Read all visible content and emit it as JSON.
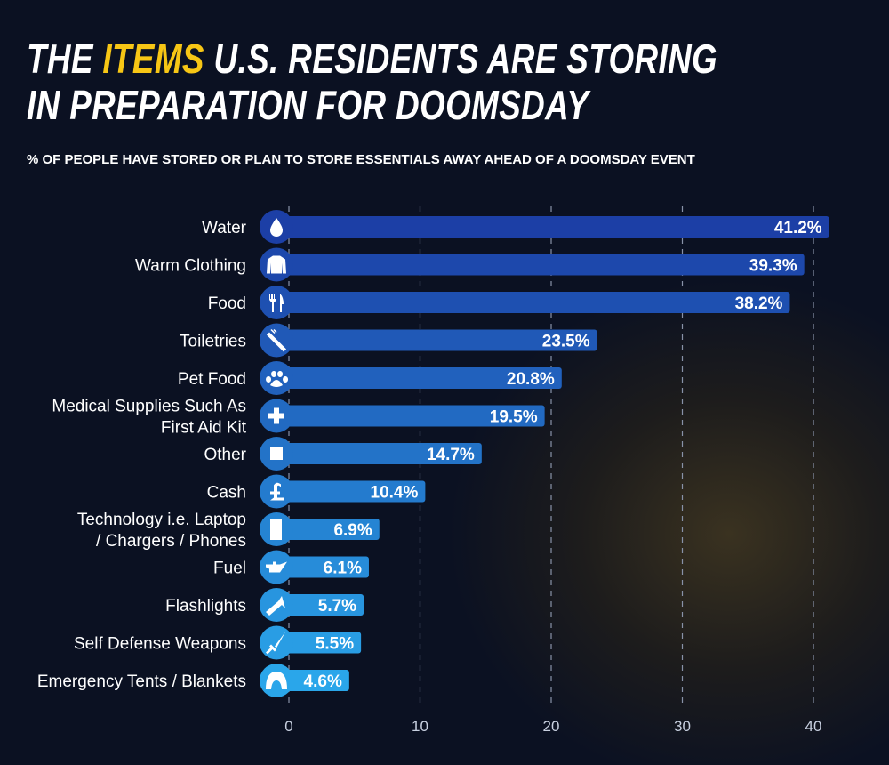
{
  "title": {
    "pre": "THE ",
    "highlight": "ITEMS",
    "post": " U.S. RESIDENTS ARE STORING",
    "line2": "IN PREPARATION FOR DOOMSDAY"
  },
  "colors": {
    "highlight": "#f7c615",
    "bar_dark": "#1c3fa6",
    "bar_light": "#2aa6ea"
  },
  "chart_data": {
    "type": "bar",
    "orientation": "horizontal",
    "title": "THE ITEMS U.S. RESIDENTS ARE STORING IN PREPARATION FOR DOOMSDAY",
    "subtitle": "% OF PEOPLE HAVE STORED OR PLAN TO STORE ESSENTIALS AWAY AHEAD OF A DOOMSDAY EVENT",
    "categories": [
      {
        "label": [
          "Water"
        ],
        "icon": "water-drop-icon"
      },
      {
        "label": [
          "Warm Clothing"
        ],
        "icon": "sweater-icon"
      },
      {
        "label": [
          "Food"
        ],
        "icon": "fork-knife-icon"
      },
      {
        "label": [
          "Toiletries"
        ],
        "icon": "toothbrush-icon"
      },
      {
        "label": [
          "Pet Food"
        ],
        "icon": "paw-icon"
      },
      {
        "label": [
          "Medical Supplies Such As",
          "First Aid Kit"
        ],
        "icon": "medical-cross-icon"
      },
      {
        "label": [
          "Other"
        ],
        "icon": "square-icon"
      },
      {
        "label": [
          "Cash"
        ],
        "icon": "pound-icon"
      },
      {
        "label": [
          "Technology i.e. Laptop",
          "/ Chargers / Phones"
        ],
        "icon": "phone-icon"
      },
      {
        "label": [
          "Fuel"
        ],
        "icon": "oil-can-icon"
      },
      {
        "label": [
          "Flashlights"
        ],
        "icon": "flashlight-icon"
      },
      {
        "label": [
          "Self Defense Weapons"
        ],
        "icon": "sword-icon"
      },
      {
        "label": [
          "Emergency Tents / Blankets"
        ],
        "icon": "tent-icon"
      }
    ],
    "values": [
      41.2,
      39.3,
      38.2,
      23.5,
      20.8,
      19.5,
      14.7,
      10.4,
      6.9,
      6.1,
      5.7,
      5.5,
      4.6
    ],
    "value_labels": [
      "41.2%",
      "39.3%",
      "38.2%",
      "23.5%",
      "20.8%",
      "19.5%",
      "14.7%",
      "10.4%",
      "6.9%",
      "6.1%",
      "5.7%",
      "5.5%",
      "4.6%"
    ],
    "xlim": [
      0,
      40
    ],
    "xticks": [
      "0",
      "10",
      "20",
      "30",
      "40"
    ],
    "grid": "vertical dashed"
  }
}
